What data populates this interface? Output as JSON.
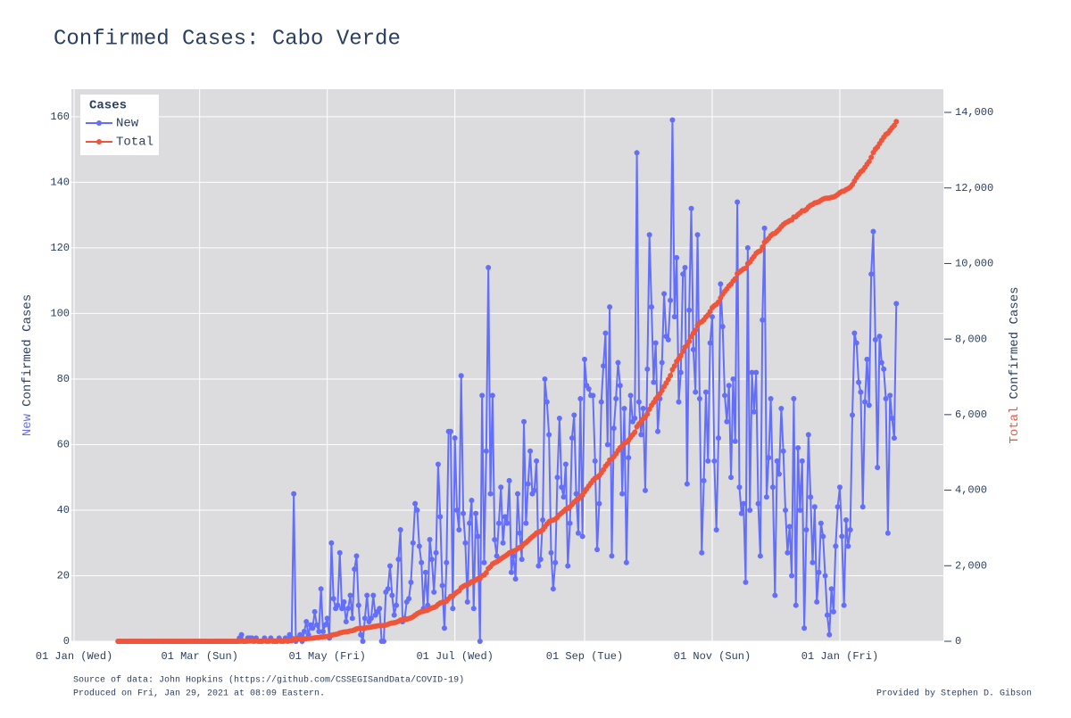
{
  "chart_data": {
    "type": "line",
    "title": "Confirmed Cases: Cabo Verde",
    "ylabel_parts": [
      "New",
      "Confirmed Cases"
    ],
    "y2label_parts": [
      "Total",
      "Confirmed Cases"
    ],
    "legend_title": "Cases",
    "legend": "top-left",
    "grid": true,
    "notes": [
      "Source of data: John Hopkins (https://github.com/CSSEGISandData/COVID-19)",
      "Produced on Fri, Jan 29, 2021 at 08:09 Eastern.",
      "Provided by Stephen D. Gibson"
    ],
    "xlim": [
      -1.3,
      415.5
    ],
    "xticks": [
      {
        "value": 0,
        "label": "01 Jan (Wed)"
      },
      {
        "value": 60,
        "label": "01 Mar (Sun)"
      },
      {
        "value": 121,
        "label": "01 May (Fri)"
      },
      {
        "value": 182,
        "label": "01 Jul (Wed)"
      },
      {
        "value": 244,
        "label": "01 Sep (Tue)"
      },
      {
        "value": 305,
        "label": "01 Nov (Sun)"
      },
      {
        "value": 366,
        "label": "01 Jan (Fri)"
      }
    ],
    "ylim": [
      0,
      168.4
    ],
    "yticks": [
      0,
      20,
      40,
      60,
      80,
      100,
      120,
      140,
      160
    ],
    "y2lim": [
      0,
      14614
    ],
    "y2ticks": [
      0,
      {
        "value": 2000,
        "label": "2,000"
      },
      {
        "value": 4000,
        "label": "4,000"
      },
      {
        "value": 6000,
        "label": "6,000"
      },
      {
        "value": 8000,
        "label": "8,000"
      },
      {
        "value": 10000,
        "label": "10,000"
      },
      {
        "value": 12000,
        "label": "12,000"
      },
      {
        "value": 14000,
        "label": "14,000"
      }
    ],
    "categories": [
      "01 Jan",
      "02 Jan",
      "03 Jan",
      "04 Jan",
      "05 Jan",
      "06 Jan",
      "07 Jan",
      "08 Jan",
      "09 Jan",
      "10 Jan",
      "11 Jan",
      "12 Jan",
      "13 Jan",
      "14 Jan",
      "15 Jan",
      "16 Jan",
      "17 Jan",
      "18 Jan",
      "19 Jan",
      "20 Jan",
      "21 Jan",
      "22 Jan",
      "23 Jan",
      "24 Jan",
      "25 Jan",
      "26 Jan",
      "27 Jan",
      "28 Jan",
      "29 Jan",
      "30 Jan",
      "31 Jan",
      "01 Feb",
      "02 Feb",
      "03 Feb",
      "04 Feb",
      "05 Feb",
      "06 Feb",
      "07 Feb",
      "08 Feb",
      "09 Feb",
      "10 Feb",
      "11 Feb",
      "12 Feb",
      "13 Feb",
      "14 Feb",
      "15 Feb",
      "16 Feb",
      "17 Feb",
      "18 Feb",
      "19 Feb",
      "20 Feb",
      "21 Feb",
      "22 Feb",
      "23 Feb",
      "24 Feb",
      "25 Feb",
      "26 Feb",
      "27 Feb",
      "28 Feb",
      "29 Feb",
      "01 Mar",
      "02 Mar",
      "03 Mar",
      "04 Mar",
      "05 Mar",
      "06 Mar",
      "07 Mar",
      "08 Mar",
      "09 Mar",
      "10 Mar",
      "11 Mar",
      "12 Mar",
      "13 Mar",
      "14 Mar",
      "15 Mar",
      "16 Mar",
      "17 Mar",
      "18 Mar",
      "19 Mar",
      "20 Mar",
      "21 Mar",
      "22 Mar",
      "23 Mar",
      "24 Mar",
      "25 Mar",
      "26 Mar",
      "27 Mar",
      "28 Mar",
      "29 Mar",
      "30 Mar",
      "31 Mar",
      "01 Apr",
      "02 Apr",
      "03 Apr",
      "04 Apr",
      "05 Apr",
      "06 Apr",
      "07 Apr",
      "08 Apr",
      "09 Apr",
      "10 Apr",
      "11 Apr",
      "12 Apr",
      "13 Apr",
      "14 Apr",
      "15 Apr",
      "16 Apr",
      "17 Apr",
      "18 Apr",
      "19 Apr",
      "20 Apr",
      "21 Apr",
      "22 Apr",
      "23 Apr",
      "24 Apr",
      "25 Apr",
      "26 Apr",
      "27 Apr",
      "28 Apr",
      "29 Apr",
      "30 Apr",
      "01 May",
      "02 May",
      "03 May",
      "04 May",
      "05 May",
      "06 May",
      "07 May",
      "08 May",
      "09 May",
      "10 May",
      "11 May",
      "12 May",
      "13 May",
      "14 May",
      "15 May",
      "16 May",
      "17 May",
      "18 May",
      "19 May",
      "20 May",
      "21 May",
      "22 May",
      "23 May",
      "24 May",
      "25 May",
      "26 May",
      "27 May",
      "28 May",
      "29 May",
      "30 May",
      "31 May",
      "01 Jun",
      "02 Jun",
      "03 Jun",
      "04 Jun",
      "05 Jun",
      "06 Jun",
      "07 Jun",
      "08 Jun",
      "09 Jun",
      "10 Jun",
      "11 Jun",
      "12 Jun",
      "13 Jun",
      "14 Jun",
      "15 Jun",
      "16 Jun",
      "17 Jun",
      "18 Jun",
      "19 Jun",
      "20 Jun",
      "21 Jun",
      "22 Jun",
      "23 Jun",
      "24 Jun",
      "25 Jun",
      "26 Jun",
      "27 Jun",
      "28 Jun",
      "29 Jun",
      "30 Jun",
      "01 Jul",
      "02 Jul",
      "03 Jul",
      "04 Jul",
      "05 Jul",
      "06 Jul",
      "07 Jul",
      "08 Jul",
      "09 Jul",
      "10 Jul",
      "11 Jul",
      "12 Jul",
      "13 Jul",
      "14 Jul",
      "15 Jul",
      "16 Jul",
      "17 Jul",
      "18 Jul",
      "19 Jul",
      "20 Jul",
      "21 Jul",
      "22 Jul",
      "23 Jul",
      "24 Jul",
      "25 Jul",
      "26 Jul",
      "27 Jul",
      "28 Jul",
      "29 Jul",
      "30 Jul",
      "31 Jul",
      "01 Aug",
      "02 Aug",
      "03 Aug",
      "04 Aug",
      "05 Aug",
      "06 Aug",
      "07 Aug",
      "08 Aug",
      "09 Aug",
      "10 Aug",
      "11 Aug",
      "12 Aug",
      "13 Aug",
      "14 Aug",
      "15 Aug",
      "16 Aug",
      "17 Aug",
      "18 Aug",
      "19 Aug",
      "20 Aug",
      "21 Aug",
      "22 Aug",
      "23 Aug",
      "24 Aug",
      "25 Aug",
      "26 Aug",
      "27 Aug",
      "28 Aug",
      "29 Aug",
      "30 Aug",
      "31 Aug",
      "01 Sep",
      "02 Sep",
      "03 Sep",
      "04 Sep",
      "05 Sep",
      "06 Sep",
      "07 Sep",
      "08 Sep",
      "09 Sep",
      "10 Sep",
      "11 Sep",
      "12 Sep",
      "13 Sep",
      "14 Sep",
      "15 Sep",
      "16 Sep",
      "17 Sep",
      "18 Sep",
      "19 Sep",
      "20 Sep",
      "21 Sep",
      "22 Sep",
      "23 Sep",
      "24 Sep",
      "25 Sep",
      "26 Sep",
      "27 Sep",
      "28 Sep",
      "29 Sep",
      "30 Sep",
      "01 Oct",
      "02 Oct",
      "03 Oct",
      "04 Oct",
      "05 Oct",
      "06 Oct",
      "07 Oct",
      "08 Oct",
      "09 Oct",
      "10 Oct",
      "11 Oct",
      "12 Oct",
      "13 Oct",
      "14 Oct",
      "15 Oct",
      "16 Oct",
      "17 Oct",
      "18 Oct",
      "19 Oct",
      "20 Oct",
      "21 Oct",
      "22 Oct",
      "23 Oct",
      "24 Oct",
      "25 Oct",
      "26 Oct",
      "27 Oct",
      "28 Oct",
      "29 Oct",
      "30 Oct",
      "31 Oct",
      "01 Nov",
      "02 Nov",
      "03 Nov",
      "04 Nov",
      "05 Nov",
      "06 Nov",
      "07 Nov",
      "08 Nov",
      "09 Nov",
      "10 Nov",
      "11 Nov",
      "12 Nov",
      "13 Nov",
      "14 Nov",
      "15 Nov",
      "16 Nov",
      "17 Nov",
      "18 Nov",
      "19 Nov",
      "20 Nov",
      "21 Nov",
      "22 Nov",
      "23 Nov",
      "24 Nov",
      "25 Nov",
      "26 Nov",
      "27 Nov",
      "28 Nov",
      "29 Nov",
      "30 Nov",
      "01 Dec",
      "02 Dec",
      "03 Dec",
      "04 Dec",
      "05 Dec",
      "06 Dec",
      "07 Dec",
      "08 Dec",
      "09 Dec",
      "10 Dec",
      "11 Dec",
      "12 Dec",
      "13 Dec",
      "14 Dec",
      "15 Dec",
      "16 Dec",
      "17 Dec",
      "18 Dec",
      "19 Dec",
      "20 Dec",
      "21 Dec",
      "22 Dec",
      "23 Dec",
      "24 Dec",
      "25 Dec",
      "26 Dec",
      "27 Dec",
      "28 Dec",
      "29 Dec",
      "30 Dec",
      "31 Dec",
      "01 Jan",
      "02 Jan",
      "03 Jan",
      "04 Jan",
      "05 Jan",
      "06 Jan",
      "07 Jan",
      "08 Jan",
      "09 Jan",
      "10 Jan",
      "11 Jan",
      "12 Jan",
      "13 Jan",
      "14 Jan",
      "15 Jan",
      "16 Jan",
      "17 Jan",
      "18 Jan",
      "19 Jan",
      "20 Jan",
      "21 Jan",
      "22 Jan",
      "23 Jan",
      "24 Jan",
      "25 Jan",
      "26 Jan",
      "27 Jan",
      "28 Jan"
    ],
    "series": [
      {
        "name": "New",
        "color": "#636efa",
        "values": [
          null,
          null,
          null,
          null,
          null,
          null,
          null,
          null,
          null,
          null,
          null,
          null,
          null,
          null,
          null,
          null,
          null,
          null,
          null,
          null,
          null,
          0,
          0,
          0,
          0,
          0,
          0,
          0,
          0,
          0,
          0,
          0,
          0,
          0,
          0,
          0,
          0,
          0,
          0,
          0,
          0,
          0,
          0,
          0,
          0,
          0,
          0,
          0,
          0,
          0,
          0,
          0,
          0,
          0,
          0,
          0,
          0,
          0,
          0,
          0,
          0,
          0,
          0,
          0,
          0,
          0,
          0,
          0,
          0,
          0,
          0,
          0,
          0,
          0,
          0,
          0,
          0,
          0,
          0,
          1,
          2,
          0,
          0,
          1,
          1,
          1,
          0,
          1,
          0,
          0,
          0,
          1,
          0,
          0,
          1,
          0,
          0,
          0,
          1,
          0,
          0,
          1,
          0,
          2,
          1,
          45,
          0,
          1,
          2,
          0,
          3,
          6,
          2,
          5,
          4,
          9,
          5,
          3,
          16,
          3,
          5,
          7,
          1,
          30,
          13,
          10,
          11,
          27,
          10,
          12,
          6,
          10,
          14,
          7,
          22,
          26,
          11,
          2,
          0,
          7,
          14,
          6,
          7,
          14,
          8,
          9,
          10,
          0,
          0,
          15,
          16,
          23,
          14,
          8,
          11,
          25,
          34,
          6,
          7,
          12,
          13,
          18,
          30,
          42,
          40,
          29,
          24,
          10,
          21,
          11,
          31,
          25,
          15,
          27,
          54,
          38,
          17,
          4,
          24,
          64,
          64,
          10,
          62,
          40,
          34,
          81,
          39,
          30,
          12,
          36,
          43,
          10,
          39,
          32,
          0,
          75,
          24,
          58,
          114,
          45,
          75,
          31,
          26,
          36,
          47,
          30,
          38,
          36,
          49,
          21,
          26,
          19,
          45,
          33,
          25,
          67,
          36,
          48,
          58,
          45,
          46,
          55,
          23,
          25,
          37,
          80,
          73,
          63,
          27,
          16,
          24,
          50,
          68,
          47,
          44,
          54,
          23,
          36,
          62,
          69,
          45,
          33,
          74,
          32,
          86,
          78,
          77,
          75,
          75,
          55,
          28,
          42,
          73,
          84,
          94,
          60,
          102,
          26,
          65,
          74,
          85,
          78,
          45,
          71,
          24,
          56,
          75,
          67,
          68,
          149,
          73,
          63,
          71,
          46,
          83,
          124,
          102,
          79,
          91,
          64,
          74,
          85,
          106,
          93,
          92,
          104,
          159,
          99,
          117,
          73,
          82,
          112,
          114,
          48,
          101,
          132,
          89,
          76,
          124,
          74,
          27,
          49,
          76,
          55,
          91,
          99,
          55,
          34,
          62,
          109,
          96,
          75,
          67,
          78,
          50,
          80,
          61,
          134,
          47,
          39,
          42,
          18,
          120,
          40,
          82,
          70,
          82,
          42,
          26,
          98,
          126,
          44,
          56,
          74,
          47,
          14,
          55,
          51,
          71,
          58,
          40,
          27,
          35,
          20,
          74,
          11,
          59,
          40,
          55,
          4,
          34,
          63,
          44,
          24,
          41,
          12,
          21,
          36,
          32,
          20,
          8,
          2,
          16,
          9,
          29,
          41,
          47,
          32,
          11,
          37,
          29,
          34,
          69,
          94,
          91,
          79,
          76,
          41,
          73,
          86,
          72,
          112,
          125,
          92,
          53,
          93,
          85,
          83,
          74,
          33,
          75,
          68,
          62,
          103
        ]
      },
      {
        "name": "Total",
        "color": "#ef553b",
        "axis": "y2",
        "values": [
          null,
          null,
          null,
          null,
          null,
          null,
          null,
          null,
          null,
          null,
          null,
          null,
          null,
          null,
          null,
          null,
          null,
          null,
          null,
          null,
          null,
          0,
          0,
          0,
          0,
          0,
          0,
          0,
          0,
          0,
          0,
          0,
          0,
          0,
          0,
          0,
          0,
          0,
          0,
          0,
          0,
          0,
          0,
          0,
          0,
          0,
          0,
          0,
          0,
          0,
          0,
          0,
          0,
          0,
          0,
          0,
          0,
          0,
          0,
          0,
          0,
          0,
          0,
          0,
          0,
          0,
          0,
          0,
          0,
          0,
          0,
          0,
          0,
          0,
          0,
          0,
          0,
          0,
          0,
          1,
          3,
          3,
          3,
          4,
          5,
          6,
          6,
          7,
          7,
          7,
          7,
          8,
          8,
          8,
          9,
          9,
          9,
          9,
          10,
          10,
          10,
          11,
          11,
          13,
          14,
          59,
          59,
          60,
          62,
          62,
          65,
          71,
          73,
          78,
          82,
          91,
          96,
          99,
          115,
          118,
          123,
          130,
          131,
          161,
          174,
          184,
          195,
          222,
          232,
          244,
          250,
          260,
          274,
          281,
          303,
          329,
          340,
          342,
          342,
          349,
          363,
          369,
          376,
          390,
          398,
          407,
          417,
          417,
          417,
          432,
          448,
          471,
          485,
          493,
          504,
          529,
          563,
          569,
          576,
          588,
          601,
          619,
          649,
          691,
          731,
          760,
          784,
          794,
          815,
          826,
          857,
          882,
          897,
          924,
          978,
          1016,
          1033,
          1037,
          1061,
          1125,
          1189,
          1199,
          1261,
          1301,
          1335,
          1416,
          1455,
          1485,
          1497,
          1533,
          1576,
          1586,
          1625,
          1657,
          1657,
          1732,
          1756,
          1814,
          1928,
          1973,
          2048,
          2079,
          2105,
          2141,
          2188,
          2218,
          2256,
          2292,
          2341,
          2362,
          2388,
          2407,
          2452,
          2485,
          2510,
          2577,
          2613,
          2661,
          2719,
          2764,
          2810,
          2865,
          2888,
          2913,
          2950,
          3030,
          3103,
          3166,
          3193,
          3209,
          3233,
          3283,
          3351,
          3398,
          3442,
          3496,
          3519,
          3555,
          3617,
          3686,
          3731,
          3764,
          3838,
          3870,
          3956,
          4034,
          4111,
          4186,
          4261,
          4316,
          4344,
          4386,
          4459,
          4543,
          4637,
          4697,
          4799,
          4825,
          4890,
          4964,
          5049,
          5127,
          5172,
          5243,
          5267,
          5323,
          5398,
          5465,
          5533,
          5682,
          5755,
          5818,
          5889,
          5935,
          6018,
          6142,
          6244,
          6323,
          6414,
          6478,
          6552,
          6637,
          6743,
          6836,
          6928,
          7032,
          7191,
          7290,
          7407,
          7480,
          7562,
          7674,
          7788,
          7836,
          7937,
          8069,
          8158,
          8234,
          8358,
          8432,
          8459,
          8508,
          8584,
          8639,
          8730,
          8829,
          8884,
          8918,
          8980,
          9089,
          9185,
          9260,
          9327,
          9405,
          9455,
          9535,
          9596,
          9730,
          9777,
          9816,
          9858,
          9876,
          9996,
          10036,
          10118,
          10188,
          10270,
          10312,
          10338,
          10436,
          10562,
          10606,
          10662,
          10736,
          10783,
          10797,
          10852,
          10903,
          10974,
          11032,
          11072,
          11099,
          11134,
          11154,
          11228,
          11239,
          11298,
          11338,
          11393,
          11397,
          11431,
          11494,
          11538,
          11562,
          11603,
          11615,
          11636,
          11672,
          11704,
          11724,
          11732,
          11734,
          11750,
          11759,
          11788,
          11829,
          11876,
          11908,
          11919,
          11956,
          11985,
          12019,
          12088,
          12182,
          12273,
          12352,
          12428,
          12469,
          12542,
          12628,
          12700,
          12812,
          12937,
          13029,
          13082,
          13175,
          13260,
          13343,
          13417,
          13450,
          13525,
          13593,
          13655,
          13758
        ]
      }
    ]
  }
}
